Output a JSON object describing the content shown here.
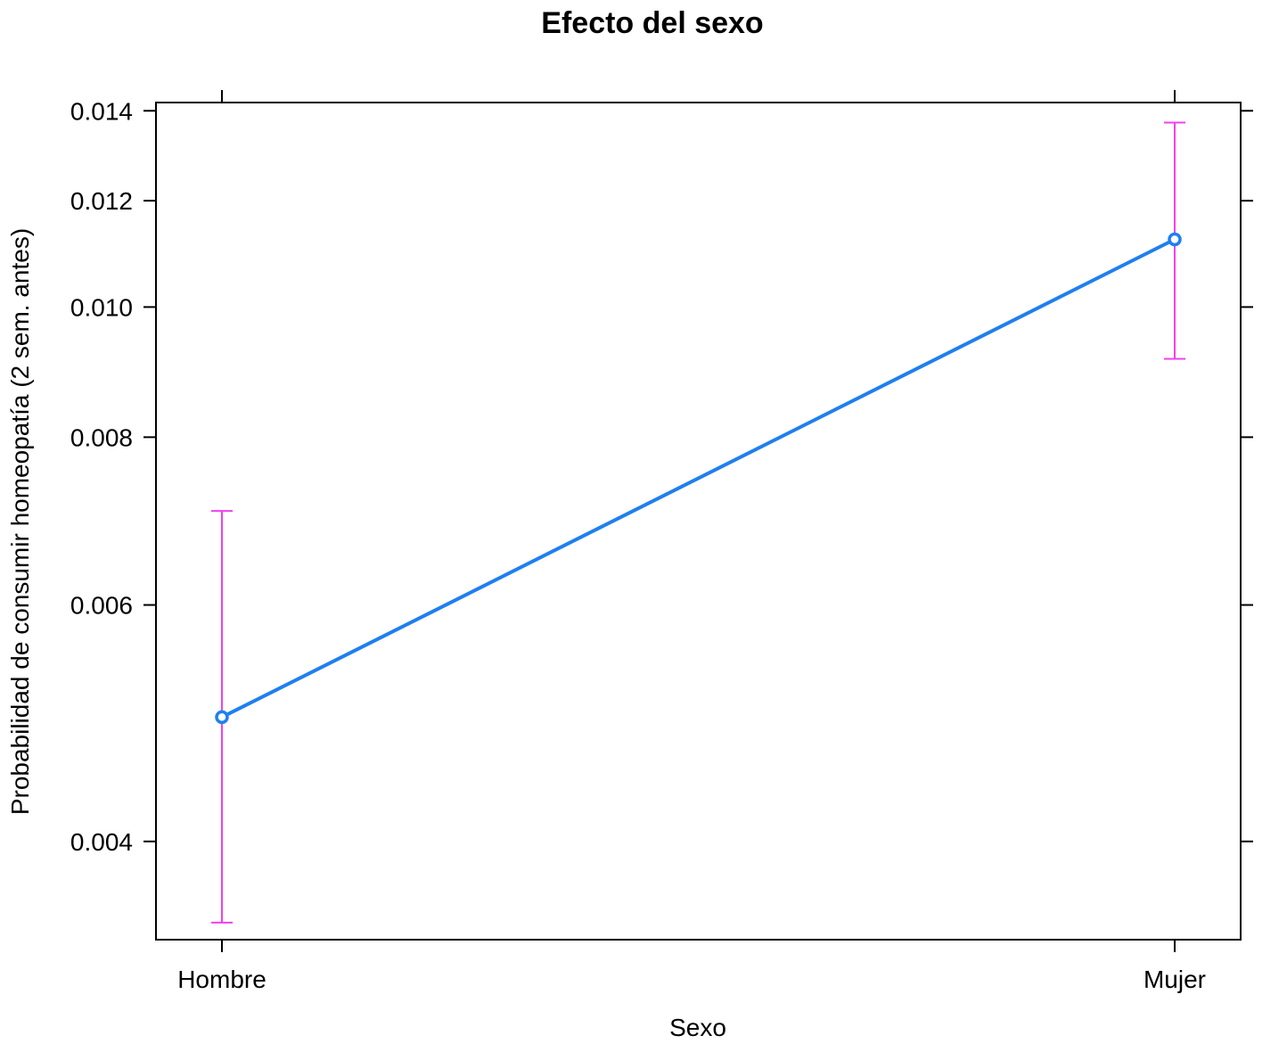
{
  "chart_data": {
    "type": "line",
    "title": "Efecto del sexo",
    "xlabel": "Sexo",
    "ylabel": "Probabilidad de consumir homeopatía (2 sem. antes)",
    "categories": [
      "Hombre",
      "Mujer"
    ],
    "series": [
      {
        "values": [
          0.00495,
          0.01123
        ],
        "lower": [
          0.00348,
          0.00915
        ],
        "upper": [
          0.00705,
          0.01372
        ]
      }
    ],
    "y_scale": "log",
    "y_ticks": [
      0.004,
      0.006,
      0.008,
      0.01,
      0.012,
      0.014
    ],
    "y_tick_labels": [
      "0.004",
      "0.006",
      "0.008",
      "0.010",
      "0.012",
      "0.014"
    ],
    "ylim": [
      0.00338,
      0.0142
    ],
    "grid": false,
    "colors": {
      "line": "#1f7ff0",
      "error_bar": "#f040f0",
      "axis": "#000000"
    }
  }
}
